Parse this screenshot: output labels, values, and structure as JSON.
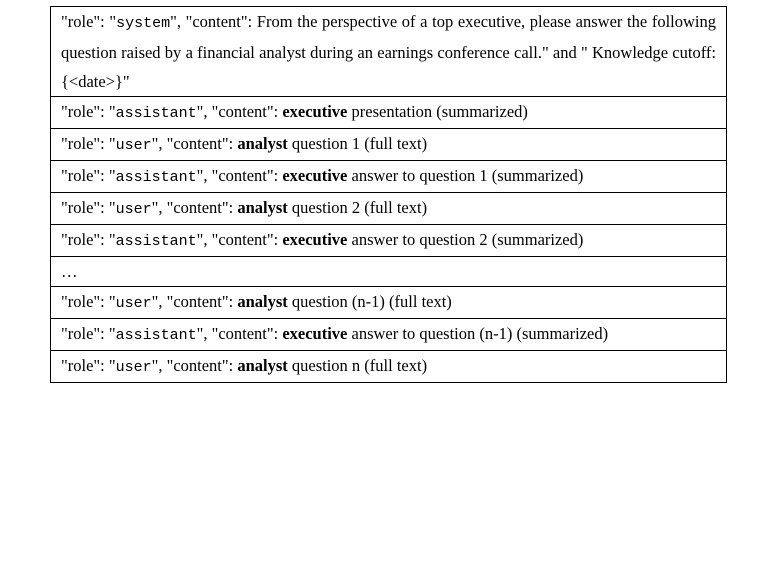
{
  "rows": [
    {
      "prefix": "\"role\": \"",
      "role": "system",
      "mid": "\", \"content\": ",
      "text": "From the perspective of a top executive, please answer the following question raised by a financial analyst during an earnings conference call.\" and \" Knowledge cutoff: {<date>}\""
    },
    {
      "prefix": "\"role\": \"",
      "role": "assistant",
      "mid": "\", \"content\": ",
      "bold": "executive",
      "text": " presentation (summarized)"
    },
    {
      "prefix": "\"role\": \"",
      "role": "user",
      "mid": "\", \"content\": ",
      "bold": "analyst",
      "text": " question 1 (full text)"
    },
    {
      "prefix": "\"role\": \"",
      "role": "assistant",
      "mid": "\", \"content\": ",
      "bold": "executive",
      "text": " answer to question 1 (summarized)"
    },
    {
      "prefix": "\"role\": \"",
      "role": "user",
      "mid": "\", \"content\": ",
      "bold": "analyst",
      "text": " question 2 (full text)"
    },
    {
      "prefix": "\"role\": \"",
      "role": "assistant",
      "mid": "\", \"content\": ",
      "bold": "executive",
      "text": " answer to question 2 (summarized)"
    },
    {
      "ellipsis": "…"
    },
    {
      "prefix": "\"role\": \"",
      "role": "user",
      "mid": "\", \"content\": ",
      "bold": "analyst",
      "text": " question (n-1) (full text)"
    },
    {
      "prefix": "\"role\": \"",
      "role": "assistant",
      "mid": "\", \"content\": ",
      "bold": "executive",
      "text": " answer to question (n-1) (summarized)"
    },
    {
      "prefix": "\"role\": \"",
      "role": "user",
      "mid": "\", \"content\": ",
      "bold": "analyst",
      "text": " question n (full text)"
    }
  ]
}
